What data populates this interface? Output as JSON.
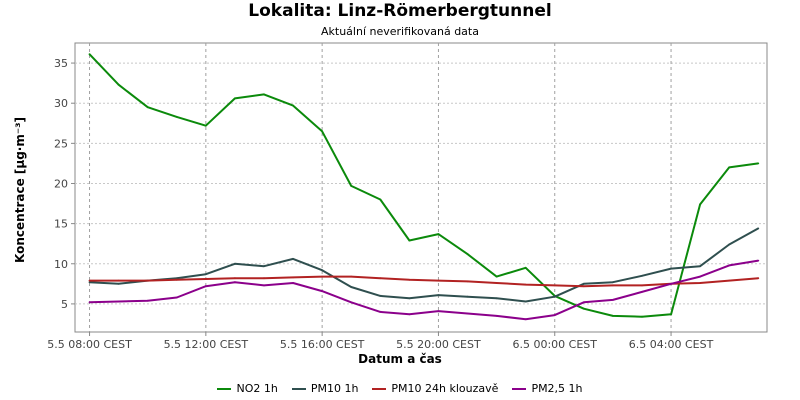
{
  "chart_data": {
    "type": "line",
    "title": "Lokalita: Linz-Römerbergtunnel",
    "subtitle": "Aktuální neverifikovaná data",
    "xlabel": "Datum a čas",
    "ylabel": "Koncentrace [µg·m⁻³]",
    "xlim": [
      -0.5,
      23.3
    ],
    "ylim": [
      1.5,
      37.5
    ],
    "x_ticks": [
      {
        "x": 0,
        "label": "5.5 08:00 CEST"
      },
      {
        "x": 4,
        "label": "5.5 12:00 CEST"
      },
      {
        "x": 8,
        "label": "5.5 16:00 CEST"
      },
      {
        "x": 12,
        "label": "5.5 20:00 CEST"
      },
      {
        "x": 16,
        "label": "6.5 00:00 CEST"
      },
      {
        "x": 20,
        "label": "6.5 04:00 CEST"
      }
    ],
    "y_ticks": [
      5,
      10,
      15,
      20,
      25,
      30,
      35
    ],
    "grid": true,
    "legend_position": "bottom",
    "x": [
      0,
      1,
      2,
      3,
      4,
      5,
      6,
      7,
      8,
      9,
      10,
      11,
      12,
      13,
      14,
      15,
      16,
      17,
      18,
      19,
      20,
      21,
      22,
      23
    ],
    "series": [
      {
        "name": "NO2 1h",
        "color": "#0b8a0b",
        "values": [
          36.1,
          32.3,
          29.5,
          28.3,
          27.2,
          30.6,
          31.1,
          29.7,
          26.5,
          19.7,
          18.0,
          12.9,
          13.7,
          11.2,
          8.4,
          9.5,
          6.0,
          4.4,
          3.5,
          3.4,
          3.7,
          17.4,
          22.0,
          22.5
        ]
      },
      {
        "name": "PM10 1h",
        "color": "#2f4f4f",
        "values": [
          7.7,
          7.5,
          7.9,
          8.2,
          8.7,
          10.0,
          9.7,
          10.6,
          9.2,
          7.1,
          6.0,
          5.7,
          6.1,
          5.9,
          5.7,
          5.3,
          5.9,
          7.5,
          7.7,
          8.5,
          9.4,
          9.7,
          12.4,
          14.4
        ]
      },
      {
        "name": "PM10 24h klouzavě",
        "color": "#b22222",
        "values": [
          7.9,
          7.9,
          7.9,
          8.0,
          8.1,
          8.2,
          8.2,
          8.3,
          8.4,
          8.4,
          8.2,
          8.0,
          7.9,
          7.8,
          7.6,
          7.4,
          7.3,
          7.2,
          7.3,
          7.3,
          7.5,
          7.6,
          7.9,
          8.2
        ]
      },
      {
        "name": "PM2,5 1h",
        "color": "#8b008b",
        "values": [
          5.2,
          5.3,
          5.4,
          5.8,
          7.2,
          7.7,
          7.3,
          7.6,
          6.6,
          5.2,
          4.0,
          3.7,
          4.1,
          3.8,
          3.5,
          3.1,
          3.6,
          5.2,
          5.5,
          6.5,
          7.5,
          8.4,
          9.8,
          10.4
        ]
      }
    ]
  }
}
